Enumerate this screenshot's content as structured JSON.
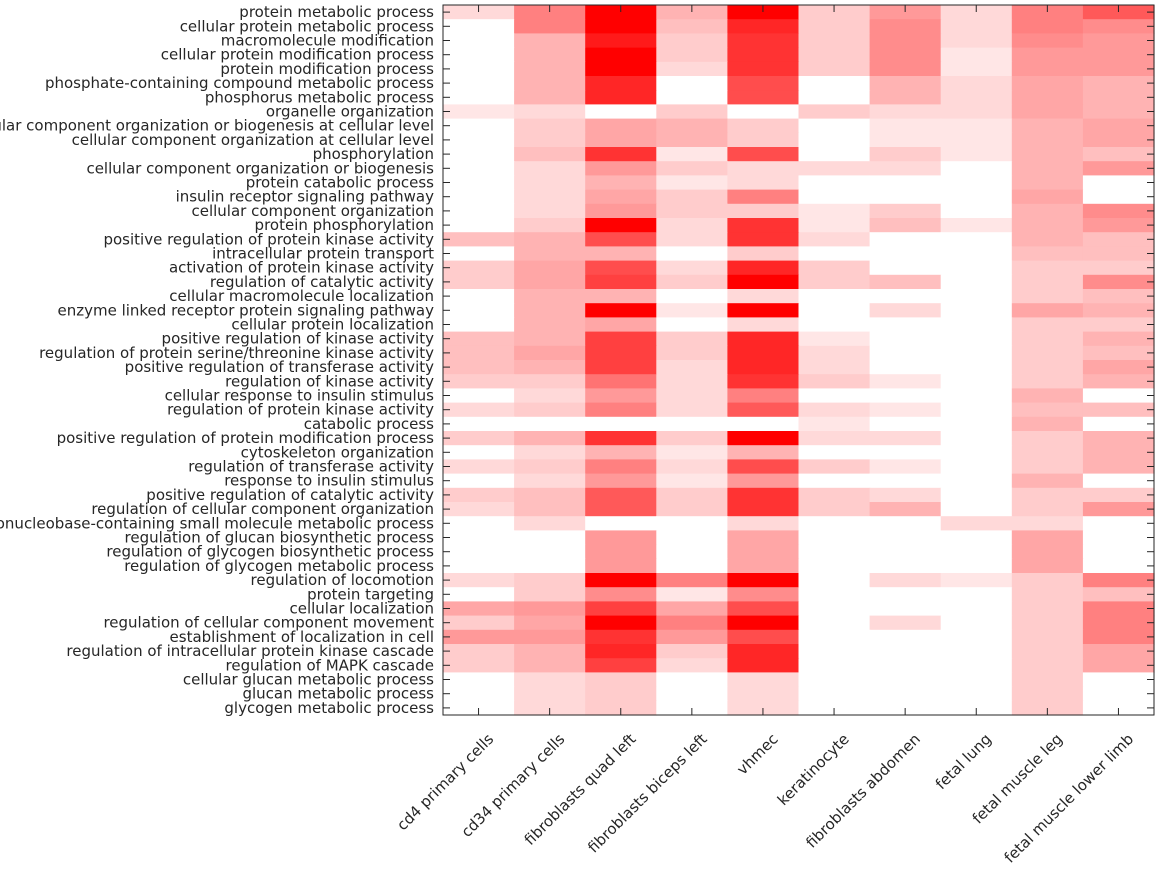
{
  "chart_data": {
    "type": "heatmap",
    "x_labels": [
      "cd4 primary cells",
      "cd34 primary cells",
      "fibroblasts quad left",
      "fibroblasts biceps left",
      "vhmec",
      "keratinocyte",
      "fibroblasts abdomen",
      "fetal lung",
      "fetal muscle leg",
      "fetal muscle lower limb"
    ],
    "y_labels": [
      "protein metabolic process",
      "cellular protein metabolic process",
      "macromolecule modification",
      "cellular protein modification process",
      "protein modification process",
      "phosphate-containing compound metabolic process",
      "phosphorus metabolic process",
      "organelle organization",
      "cellular component organization or biogenesis at cellular level",
      "cellular component organization at cellular level",
      "phosphorylation",
      "cellular component organization or biogenesis",
      "protein catabolic process",
      "insulin receptor signaling pathway",
      "cellular component organization",
      "protein phosphorylation",
      "positive regulation of protein kinase activity",
      "intracellular protein transport",
      "activation of protein kinase activity",
      "regulation of catalytic activity",
      "cellular macromolecule localization",
      "enzyme linked receptor protein signaling pathway",
      "cellular protein localization",
      "positive regulation of kinase activity",
      "regulation of protein serine/threonine kinase activity",
      "positive regulation of transferase activity",
      "regulation of kinase activity",
      "cellular response to insulin stimulus",
      "regulation of protein kinase activity",
      "catabolic process",
      "positive regulation of protein modification process",
      "cytoskeleton organization",
      "regulation of transferase activity",
      "response to insulin stimulus",
      "positive regulation of catalytic activity",
      "regulation of cellular component organization",
      "ribonucleobase-containing small molecule metabolic process",
      "regulation of glucan biosynthetic process",
      "regulation of glycogen biosynthetic process",
      "regulation of glycogen metabolic process",
      "regulation of locomotion",
      "protein targeting",
      "cellular localization",
      "regulation of cellular component movement",
      "establishment of localization in cell",
      "regulation of intracellular protein kinase cascade",
      "regulation of MAPK cascade",
      "cellular glucan metabolic process",
      "glucan metabolic process",
      "glycogen metabolic process"
    ],
    "values": [
      [
        0.15,
        0.5,
        1.0,
        0.3,
        1.0,
        0.2,
        0.4,
        0.15,
        0.5,
        0.65
      ],
      [
        0,
        0.5,
        1.0,
        0.25,
        0.85,
        0.2,
        0.45,
        0.15,
        0.5,
        0.45
      ],
      [
        0,
        0.3,
        0.9,
        0.2,
        0.8,
        0.2,
        0.45,
        0.15,
        0.45,
        0.4
      ],
      [
        0,
        0.3,
        1.0,
        0.2,
        0.8,
        0.2,
        0.45,
        0.1,
        0.4,
        0.4
      ],
      [
        0,
        0.3,
        1.0,
        0.15,
        0.8,
        0.2,
        0.45,
        0.1,
        0.4,
        0.4
      ],
      [
        0,
        0.3,
        0.85,
        0,
        0.7,
        0,
        0.3,
        0.15,
        0.35,
        0.3
      ],
      [
        0,
        0.3,
        0.85,
        0,
        0.7,
        0,
        0.3,
        0.15,
        0.35,
        0.3
      ],
      [
        0.1,
        0.15,
        0,
        0.2,
        0,
        0.2,
        0.15,
        0.15,
        0.35,
        0.3
      ],
      [
        0,
        0.2,
        0.35,
        0.3,
        0.2,
        0,
        0.1,
        0.1,
        0.3,
        0.35
      ],
      [
        0,
        0.2,
        0.35,
        0.3,
        0.2,
        0,
        0.1,
        0.1,
        0.3,
        0.35
      ],
      [
        0,
        0.25,
        0.8,
        0.1,
        0.7,
        0,
        0.2,
        0.1,
        0.3,
        0.25
      ],
      [
        0,
        0.15,
        0.4,
        0.2,
        0.15,
        0.15,
        0.15,
        0,
        0.3,
        0.4
      ],
      [
        0,
        0.15,
        0.3,
        0.1,
        0.15,
        0,
        0,
        0,
        0.3,
        0
      ],
      [
        0,
        0.15,
        0.35,
        0.2,
        0.5,
        0,
        0,
        0,
        0.35,
        0
      ],
      [
        0,
        0.15,
        0.4,
        0.2,
        0.2,
        0.1,
        0.2,
        0,
        0.3,
        0.45
      ],
      [
        0,
        0.2,
        1.0,
        0.15,
        0.8,
        0.1,
        0.25,
        0.1,
        0.3,
        0.4
      ],
      [
        0.25,
        0.3,
        0.7,
        0.15,
        0.8,
        0.15,
        0,
        0,
        0.3,
        0.25
      ],
      [
        0,
        0.3,
        0.3,
        0,
        0.2,
        0,
        0,
        0,
        0.25,
        0.25
      ],
      [
        0.2,
        0.35,
        0.7,
        0.15,
        0.85,
        0.2,
        0,
        0,
        0.2,
        0.2
      ],
      [
        0.2,
        0.35,
        0.75,
        0.2,
        1.0,
        0.2,
        0.25,
        0,
        0.2,
        0.45
      ],
      [
        0,
        0.3,
        0.3,
        0,
        0.15,
        0,
        0,
        0,
        0.2,
        0.25
      ],
      [
        0,
        0.3,
        1.0,
        0.1,
        1.0,
        0,
        0.15,
        0,
        0.35,
        0.3
      ],
      [
        0,
        0.3,
        0.35,
        0,
        0.15,
        0,
        0,
        0,
        0.2,
        0.2
      ],
      [
        0.25,
        0.3,
        0.75,
        0.2,
        0.85,
        0.1,
        0,
        0,
        0.2,
        0.3
      ],
      [
        0.25,
        0.35,
        0.75,
        0.2,
        0.85,
        0.15,
        0,
        0,
        0.2,
        0.25
      ],
      [
        0.25,
        0.3,
        0.75,
        0.15,
        0.85,
        0.15,
        0,
        0,
        0.2,
        0.35
      ],
      [
        0.2,
        0.2,
        0.55,
        0.15,
        0.8,
        0.2,
        0.1,
        0,
        0.2,
        0.3
      ],
      [
        0,
        0.15,
        0.4,
        0.15,
        0.5,
        0,
        0,
        0,
        0.3,
        0
      ],
      [
        0.15,
        0.2,
        0.5,
        0.15,
        0.65,
        0.15,
        0.1,
        0,
        0.25,
        0.25
      ],
      [
        0,
        0,
        0,
        0,
        0,
        0.1,
        0,
        0,
        0.3,
        0
      ],
      [
        0.2,
        0.3,
        0.8,
        0.2,
        1.0,
        0.15,
        0.15,
        0,
        0.2,
        0.3
      ],
      [
        0,
        0.15,
        0.3,
        0.1,
        0.3,
        0,
        0,
        0,
        0.2,
        0.3
      ],
      [
        0.15,
        0.2,
        0.5,
        0.15,
        0.7,
        0.2,
        0.1,
        0,
        0.2,
        0.3
      ],
      [
        0,
        0.15,
        0.4,
        0.1,
        0.4,
        0,
        0,
        0,
        0.3,
        0
      ],
      [
        0.2,
        0.25,
        0.65,
        0.2,
        0.8,
        0.2,
        0.15,
        0,
        0.2,
        0.2
      ],
      [
        0.15,
        0.25,
        0.65,
        0.2,
        0.8,
        0.2,
        0.3,
        0,
        0.2,
        0.4
      ],
      [
        0,
        0.15,
        0,
        0,
        0.15,
        0,
        0,
        0.15,
        0.15,
        0
      ],
      [
        0,
        0,
        0.4,
        0,
        0.35,
        0,
        0,
        0,
        0.35,
        0
      ],
      [
        0,
        0,
        0.4,
        0,
        0.35,
        0,
        0,
        0,
        0.35,
        0
      ],
      [
        0,
        0,
        0.4,
        0,
        0.35,
        0,
        0,
        0,
        0.35,
        0
      ],
      [
        0.15,
        0.2,
        1.0,
        0.5,
        1.0,
        0,
        0.15,
        0.1,
        0.2,
        0.5
      ],
      [
        0,
        0.2,
        0.45,
        0.1,
        0.45,
        0,
        0,
        0,
        0.2,
        0.25
      ],
      [
        0.35,
        0.4,
        0.75,
        0.35,
        0.7,
        0,
        0,
        0,
        0.2,
        0.5
      ],
      [
        0.2,
        0.35,
        1.0,
        0.5,
        1.0,
        0,
        0.15,
        0,
        0.2,
        0.5
      ],
      [
        0.4,
        0.4,
        0.8,
        0.4,
        0.7,
        0,
        0,
        0,
        0.2,
        0.5
      ],
      [
        0.2,
        0.3,
        0.85,
        0.2,
        0.85,
        0,
        0,
        0,
        0.2,
        0.35
      ],
      [
        0.2,
        0.3,
        0.75,
        0.15,
        0.85,
        0,
        0,
        0,
        0.2,
        0.35
      ],
      [
        0,
        0.15,
        0.2,
        0,
        0.15,
        0,
        0,
        0,
        0.2,
        0
      ],
      [
        0,
        0.15,
        0.2,
        0,
        0.15,
        0,
        0,
        0,
        0.2,
        0
      ],
      [
        0,
        0.15,
        0.2,
        0,
        0.15,
        0,
        0,
        0,
        0.2,
        0
      ]
    ],
    "color_low": "#ffffff",
    "color_high": "#ff0000"
  }
}
